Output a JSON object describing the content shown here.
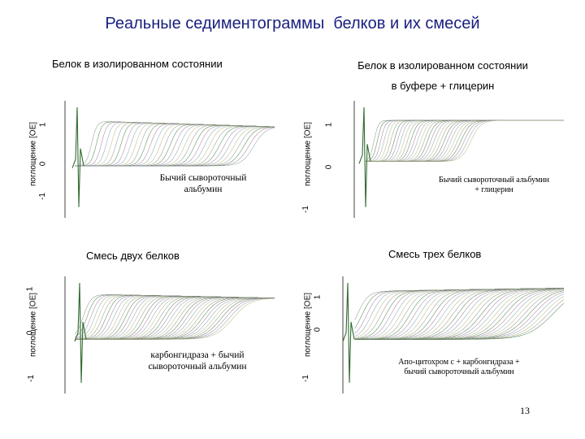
{
  "page": {
    "title": "Реальные седиментограммы  белков и их смесей",
    "page_number": "13"
  },
  "chart_data": [
    {
      "type": "line",
      "title_lines": [
        "Белок в изолированном состоянии"
      ],
      "ylabel": "поглощение [ОЕ]",
      "yticks": [
        "-1",
        "0",
        "1"
      ],
      "annotation": [
        "Бычий сывороточный",
        "альбумин"
      ],
      "ylim": [
        -1.3,
        1.4
      ],
      "plateau": 0.95,
      "baseline": -0.1,
      "n_curves": 34,
      "boundary_start": 0.12,
      "boundary_end": 0.9,
      "width": 0.06,
      "upper_drift": -0.15,
      "colors": [
        "#888888",
        "#3a7a3a",
        "#a07090",
        "#7a9aa8",
        "#b0b070"
      ]
    },
    {
      "type": "line",
      "title_lines": [
        "Белок в изолированном состоянии",
        "в буфере + глицерин"
      ],
      "ylabel": "поглощение [ОЕ]",
      "yticks": [
        "-1",
        "0",
        "1"
      ],
      "annotation": [
        "Бычий сывороточный альбумин",
        "+ глицерин"
      ],
      "ylim": [
        -1.3,
        1.4
      ],
      "plateau": 0.95,
      "baseline": 0.0,
      "n_curves": 30,
      "boundary_start": 0.08,
      "boundary_end": 0.55,
      "width": 0.05,
      "upper_drift": 0.0,
      "colors": [
        "#888888",
        "#3a7a3a",
        "#a07090",
        "#7a9aa8",
        "#b0b070"
      ]
    },
    {
      "type": "line",
      "title_lines": [
        "Смесь двух белков"
      ],
      "ylabel": "поглощение [ОЕ]",
      "yticks": [
        "-1",
        "0",
        "1"
      ],
      "annotation": [
        "карбонгидраза + бычий",
        "сывороточный альбумин"
      ],
      "ylim": [
        -1.3,
        1.4
      ],
      "plateau": 1.0,
      "baseline": -0.05,
      "n_curves": 40,
      "boundary_start": 0.08,
      "boundary_end": 0.8,
      "width": 0.09,
      "upper_drift": -0.1,
      "colors": [
        "#888888",
        "#3a7a3a",
        "#a07090",
        "#7a9aa8",
        "#b0b070"
      ]
    },
    {
      "type": "line",
      "title_lines": [
        "Смесь трех белков"
      ],
      "ylabel": "поглощение [ОЕ]",
      "yticks": [
        "-1",
        "0",
        "1"
      ],
      "annotation": [
        "Апо-цитохром с + карбонгидраза  +",
        "бычий сывороточный альбумин"
      ],
      "ylim": [
        -1.3,
        1.4
      ],
      "plateau": 1.05,
      "baseline": -0.05,
      "n_curves": 42,
      "boundary_start": 0.05,
      "boundary_end": 0.95,
      "width": 0.12,
      "upper_drift": 0.08,
      "colors": [
        "#888888",
        "#3a7a3a",
        "#a07090",
        "#7a9aa8",
        "#b0b070"
      ]
    }
  ]
}
